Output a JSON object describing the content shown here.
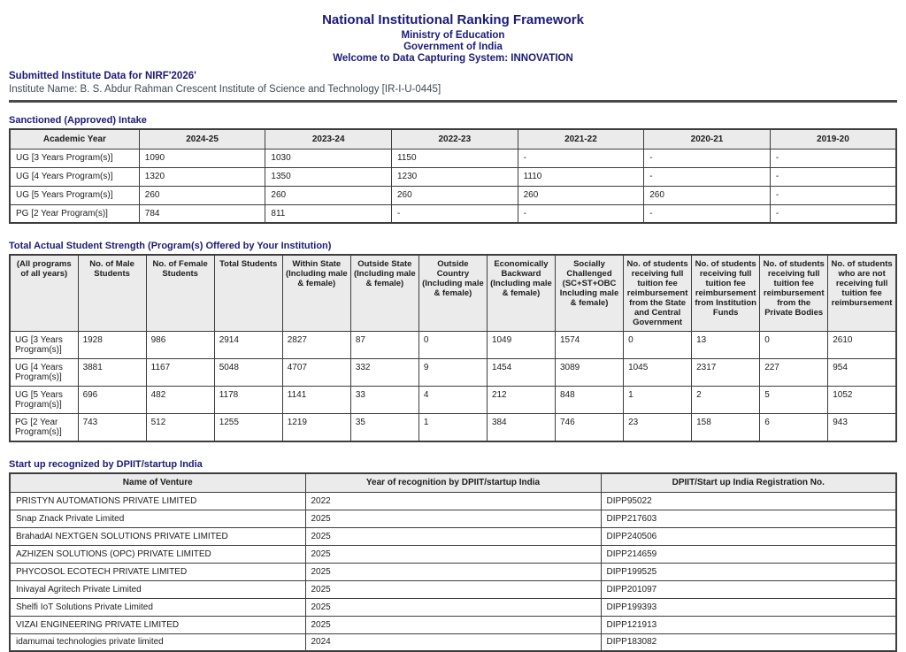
{
  "colors": {
    "accent_navy": "#1b1b77",
    "table_border": "#3d3d3d",
    "table_header_bg": "#ebebeb",
    "institute_text": "#3f4a56"
  },
  "header": {
    "title": "National Institutional Ranking Framework",
    "subtitle1": "Ministry of Education",
    "subtitle2": "Government of India",
    "subtitle3": "Welcome to Data Capturing System: INNOVATION"
  },
  "submitted_heading": "Submitted Institute Data for NIRF'2026'",
  "institute_line": "Institute Name: B. S. Abdur Rahman Crescent Institute of Science and Technology [IR-I-U-0445]",
  "sanctioned_intake": {
    "title": "Sanctioned (Approved) Intake",
    "columns": [
      "Academic Year",
      "2024-25",
      "2023-24",
      "2022-23",
      "2021-22",
      "2020-21",
      "2019-20"
    ],
    "rows": [
      [
        "UG [3 Years Program(s)]",
        "1090",
        "1030",
        "1150",
        "-",
        "-",
        "-"
      ],
      [
        "UG [4 Years Program(s)]",
        "1320",
        "1350",
        "1230",
        "1110",
        "-",
        "-"
      ],
      [
        "UG [5 Years Program(s)]",
        "260",
        "260",
        "260",
        "260",
        "260",
        "-"
      ],
      [
        "PG [2 Year Program(s)]",
        "784",
        "811",
        "-",
        "-",
        "-",
        "-"
      ]
    ]
  },
  "student_strength": {
    "title": "Total Actual Student Strength (Program(s) Offered by Your Institution)",
    "columns": [
      "(All programs of all years)",
      "No. of Male Students",
      "No. of Female Students",
      "Total Students",
      "Within State (Including male & female)",
      "Outside State (Including male & female)",
      "Outside Country (Including male & female)",
      "Economically Backward (Including male & female)",
      "Socially Challenged (SC+ST+OBC Including male & female)",
      "No. of students receiving full tuition fee reimbursement from the State and Central Government",
      "No. of students receiving full tuition fee reimbursement from Institution Funds",
      "No. of students receiving full tuition fee reimbursement from the Private Bodies",
      "No. of students who are not receiving full tuition fee reimbursement"
    ],
    "rows": [
      [
        "UG [3 Years Program(s)]",
        "1928",
        "986",
        "2914",
        "2827",
        "87",
        "0",
        "1049",
        "1574",
        "0",
        "13",
        "0",
        "2610"
      ],
      [
        "UG [4 Years Program(s)]",
        "3881",
        "1167",
        "5048",
        "4707",
        "332",
        "9",
        "1454",
        "3089",
        "1045",
        "2317",
        "227",
        "954"
      ],
      [
        "UG [5 Years Program(s)]",
        "696",
        "482",
        "1178",
        "1141",
        "33",
        "4",
        "212",
        "848",
        "1",
        "2",
        "5",
        "1052"
      ],
      [
        "PG [2 Year Program(s)]",
        "743",
        "512",
        "1255",
        "1219",
        "35",
        "1",
        "384",
        "746",
        "23",
        "158",
        "6",
        "943"
      ]
    ]
  },
  "startups": {
    "title": "Start up recognized by DPIIT/startup India",
    "columns": [
      "Name of Venture",
      "Year of recognition by DPIIT/startup India",
      "DPIIT/Start up India Registration No."
    ],
    "rows": [
      [
        "PRISTYN AUTOMATIONS PRIVATE LIMITED",
        "2022",
        "DIPP95022"
      ],
      [
        "Snap Znack Private Limited",
        "2025",
        "DIPP217603"
      ],
      [
        "BrahadAI NEXTGEN SOLUTIONS PRIVATE LIMITED",
        "2025",
        "DIPP240506"
      ],
      [
        "AZHIZEN SOLUTIONS (OPC) PRIVATE LIMITED",
        "2025",
        "DIPP214659"
      ],
      [
        "PHYCOSOL ECOTECH PRIVATE LIMITED",
        "2025",
        "DIPP199525"
      ],
      [
        "Inivayal Agritech Private Limited",
        "2025",
        "DIPP201097"
      ],
      [
        "Shelfi IoT Solutions Private Limited",
        "2025",
        "DIPP199393"
      ],
      [
        "VIZAI ENGINEERING PRIVATE LIMITED",
        "2025",
        "DIPP121913"
      ],
      [
        "idamumai technologies private limited",
        "2024",
        "DIPP183082"
      ]
    ]
  }
}
